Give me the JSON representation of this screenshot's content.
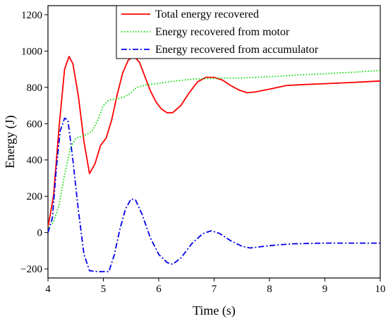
{
  "chart_data": {
    "type": "line",
    "xlabel": "Time (s)",
    "ylabel": "Energy (J)",
    "xlim": [
      4,
      10
    ],
    "ylim": [
      -250,
      1250
    ],
    "x_ticks": [
      4,
      5,
      6,
      7,
      8,
      9,
      10
    ],
    "y_ticks": [
      -200,
      0,
      200,
      400,
      600,
      800,
      1000,
      1200
    ],
    "x_tick_labels": [
      "4",
      "5",
      "6",
      "7",
      "8",
      "9",
      "10"
    ],
    "y_tick_labels": [
      "−200",
      "0",
      "200",
      "400",
      "600",
      "800",
      "1000",
      "1200"
    ],
    "grid": false,
    "legend_position": "top-right",
    "series": [
      {
        "name": "Total energy recovered",
        "color": "#ff0000",
        "dash": "solid",
        "points": [
          [
            4.0,
            30
          ],
          [
            4.1,
            200
          ],
          [
            4.2,
            580
          ],
          [
            4.3,
            900
          ],
          [
            4.38,
            970
          ],
          [
            4.45,
            930
          ],
          [
            4.55,
            750
          ],
          [
            4.65,
            500
          ],
          [
            4.75,
            325
          ],
          [
            4.85,
            380
          ],
          [
            4.95,
            480
          ],
          [
            5.05,
            520
          ],
          [
            5.15,
            620
          ],
          [
            5.25,
            760
          ],
          [
            5.35,
            880
          ],
          [
            5.45,
            950
          ],
          [
            5.55,
            970
          ],
          [
            5.65,
            940
          ],
          [
            5.75,
            860
          ],
          [
            5.85,
            780
          ],
          [
            5.95,
            720
          ],
          [
            6.05,
            680
          ],
          [
            6.15,
            660
          ],
          [
            6.25,
            660
          ],
          [
            6.4,
            700
          ],
          [
            6.55,
            770
          ],
          [
            6.7,
            830
          ],
          [
            6.85,
            855
          ],
          [
            7.0,
            855
          ],
          [
            7.15,
            840
          ],
          [
            7.3,
            810
          ],
          [
            7.45,
            785
          ],
          [
            7.6,
            770
          ],
          [
            7.75,
            775
          ],
          [
            8.0,
            790
          ],
          [
            8.3,
            810
          ],
          [
            8.6,
            815
          ],
          [
            9.0,
            820
          ],
          [
            9.5,
            827
          ],
          [
            10.0,
            835
          ]
        ]
      },
      {
        "name": "Energy recovered from motor",
        "color": "#00dd00",
        "dash": "dotted",
        "points": [
          [
            4.0,
            30
          ],
          [
            4.1,
            60
          ],
          [
            4.2,
            150
          ],
          [
            4.3,
            320
          ],
          [
            4.4,
            460
          ],
          [
            4.5,
            520
          ],
          [
            4.6,
            530
          ],
          [
            4.7,
            540
          ],
          [
            4.8,
            560
          ],
          [
            4.9,
            620
          ],
          [
            5.0,
            700
          ],
          [
            5.1,
            730
          ],
          [
            5.2,
            735
          ],
          [
            5.3,
            740
          ],
          [
            5.4,
            750
          ],
          [
            5.5,
            770
          ],
          [
            5.6,
            800
          ],
          [
            5.8,
            815
          ],
          [
            6.0,
            822
          ],
          [
            6.3,
            835
          ],
          [
            6.6,
            845
          ],
          [
            7.0,
            850
          ],
          [
            7.5,
            852
          ],
          [
            8.0,
            858
          ],
          [
            8.5,
            868
          ],
          [
            9.0,
            875
          ],
          [
            9.5,
            883
          ],
          [
            10.0,
            893
          ]
        ]
      },
      {
        "name": "Energy recovered from accumulator",
        "color": "#0000ee",
        "dash": "dashdot",
        "points": [
          [
            4.0,
            0
          ],
          [
            4.08,
            80
          ],
          [
            4.15,
            350
          ],
          [
            4.22,
            560
          ],
          [
            4.3,
            630
          ],
          [
            4.36,
            620
          ],
          [
            4.45,
            400
          ],
          [
            4.55,
            120
          ],
          [
            4.65,
            -120
          ],
          [
            4.75,
            -210
          ],
          [
            4.9,
            -215
          ],
          [
            5.1,
            -215
          ],
          [
            5.2,
            -120
          ],
          [
            5.3,
            20
          ],
          [
            5.4,
            130
          ],
          [
            5.5,
            185
          ],
          [
            5.58,
            180
          ],
          [
            5.7,
            100
          ],
          [
            5.85,
            -30
          ],
          [
            6.0,
            -120
          ],
          [
            6.15,
            -165
          ],
          [
            6.25,
            -175
          ],
          [
            6.4,
            -140
          ],
          [
            6.6,
            -60
          ],
          [
            6.8,
            -5
          ],
          [
            6.95,
            10
          ],
          [
            7.1,
            -5
          ],
          [
            7.3,
            -45
          ],
          [
            7.5,
            -75
          ],
          [
            7.65,
            -85
          ],
          [
            8.0,
            -72
          ],
          [
            8.4,
            -62
          ],
          [
            9.0,
            -58
          ],
          [
            10.0,
            -58
          ]
        ]
      }
    ]
  }
}
